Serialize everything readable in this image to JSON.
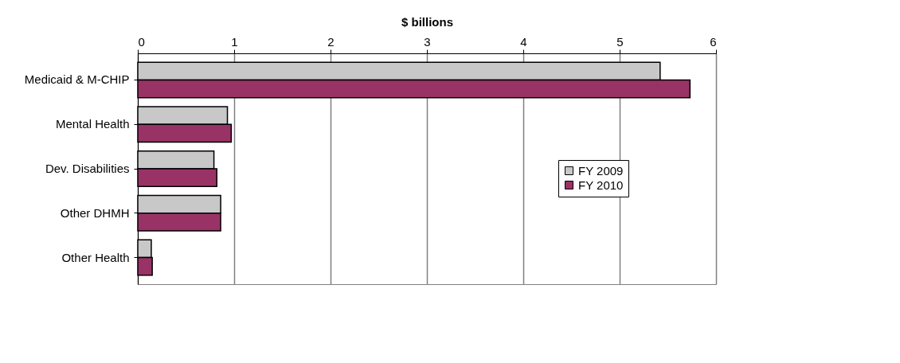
{
  "chart_data": {
    "type": "bar",
    "orientation": "horizontal",
    "xlabel": "$ billions",
    "categories": [
      "Medicaid & M-CHIP",
      "Mental Health",
      "Dev. Disabilities",
      "Other DHMH",
      "Other Health"
    ],
    "series": [
      {
        "name": "FY 2009",
        "color": "#c8c8c8",
        "values": [
          5.42,
          0.93,
          0.79,
          0.86,
          0.14
        ]
      },
      {
        "name": "FY 2010",
        "color": "#993366",
        "values": [
          5.73,
          0.97,
          0.82,
          0.86,
          0.15
        ]
      }
    ],
    "xlim": [
      0,
      6
    ],
    "xticks": [
      0,
      1,
      2,
      3,
      4,
      5,
      6
    ],
    "grid": "x",
    "legend": "bottom right"
  }
}
